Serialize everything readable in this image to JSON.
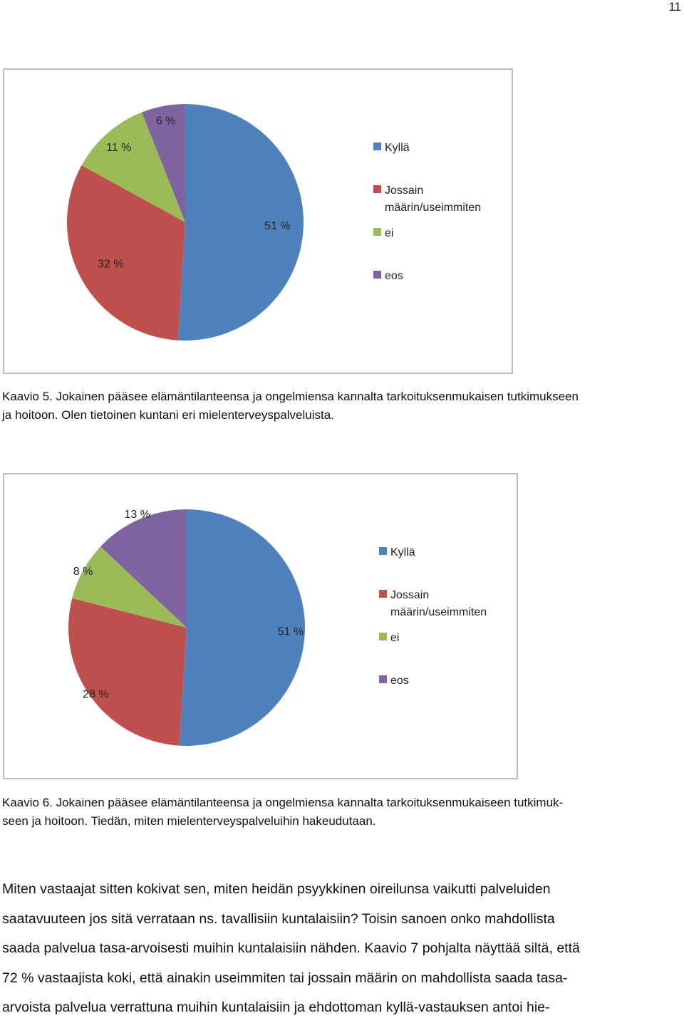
{
  "page_number": "11",
  "chart_data": [
    {
      "type": "pie",
      "categories": [
        "Kyllä",
        "Jossain määrin/useimmiten",
        "ei",
        "eos"
      ],
      "values": [
        51,
        32,
        11,
        6
      ],
      "labels": [
        "51 %",
        "32 %",
        "11 %",
        "6 %"
      ],
      "legend": [
        "Kyllä",
        "Jossain määrin/useimmiten",
        "ei",
        "eos"
      ],
      "legend_lines": [
        [
          "Kyllä"
        ],
        [
          "Jossain",
          "määrin/useimmiten"
        ],
        [
          "ei"
        ],
        [
          "eos"
        ]
      ],
      "colors": [
        "#4F81BD",
        "#C0504D",
        "#9BBB59",
        "#8064A2"
      ],
      "legend_placement": "right"
    },
    {
      "type": "pie",
      "categories": [
        "Kyllä",
        "Jossain määrin/useimmiten",
        "ei",
        "eos"
      ],
      "values": [
        51,
        28,
        8,
        13
      ],
      "labels": [
        "51 %",
        "28 %",
        "8 %",
        "13 %"
      ],
      "legend": [
        "Kyllä",
        "Jossain määrin/useimmiten",
        "ei",
        "eos"
      ],
      "legend_lines": [
        [
          "Kyllä"
        ],
        [
          "Jossain",
          "määrin/useimmiten"
        ],
        [
          "ei"
        ],
        [
          "eos"
        ]
      ],
      "colors": [
        "#4F81BD",
        "#C0504D",
        "#9BBB59",
        "#8064A2"
      ],
      "legend_placement": "right"
    }
  ],
  "captions": {
    "kaavio5": [
      "Kaavio 5. Jokainen pääsee elämäntilanteensa ja ongelmiensa kannalta tarkoituksenmukaisen tutkimukseen",
      "ja hoitoon. Olen tietoinen kuntani eri mielenterveyspalveluista."
    ],
    "kaavio6": [
      "Kaavio 6. Jokainen pääsee elämäntilanteensa ja ongelmiensa kannalta tarkoituksenmukaiseen tutkimuk-",
      "seen ja hoitoon. Tiedän, miten mielenterveyspalveluihin hakeudutaan."
    ]
  },
  "body_lines": [
    "Miten vastaajat sitten kokivat sen, miten heidän psyykkinen oireilunsa vaikutti palveluiden",
    "saatavuuteen jos sitä verrataan ns. tavallisiin kuntalaisiin? Toisin sanoen onko mahdollista",
    "saada palvelua tasa-arvoisesti muihin kuntalaisiin nähden. Kaavio 7 pohjalta näyttää siltä, että",
    "72 % vastaajista koki, että ainakin useimmiten tai jossain määrin on mahdollista saada tasa-",
    "arvoista palvelua verrattuna muihin kuntalaisiin ja ehdottoman kyllä-vastauksen antoi hie-"
  ]
}
